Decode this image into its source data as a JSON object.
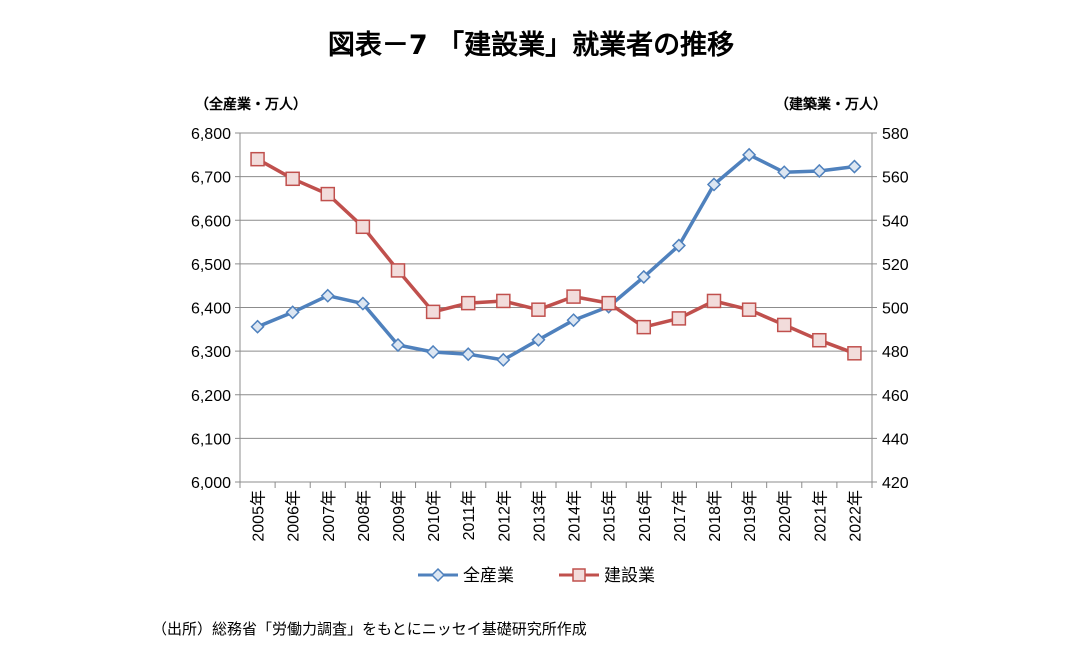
{
  "chart_data": {
    "type": "line",
    "title": "図表－7 「建設業」就業者の推移",
    "left_axis_unit": "（全産業・万人）",
    "right_axis_unit": "（建築業・万人）",
    "categories": [
      "2005年",
      "2006年",
      "2007年",
      "2008年",
      "2009年",
      "2010年",
      "2011年",
      "2012年",
      "2013年",
      "2014年",
      "2015年",
      "2016年",
      "2017年",
      "2018年",
      "2019年",
      "2020年",
      "2021年",
      "2022年"
    ],
    "left_ylim": [
      6000,
      6800
    ],
    "left_yticks": [
      "6,000",
      "6,100",
      "6,200",
      "6,300",
      "6,400",
      "6,500",
      "6,600",
      "6,700",
      "6,800"
    ],
    "right_ylim": [
      420,
      580
    ],
    "right_yticks": [
      "420",
      "440",
      "460",
      "480",
      "500",
      "520",
      "540",
      "560",
      "580"
    ],
    "grid": true,
    "legend_position": "bottom",
    "series": [
      {
        "name": "全産業",
        "axis": "left",
        "color": "#4F81BD",
        "marker": "diamond",
        "values": [
          6356,
          6389,
          6427,
          6409,
          6314,
          6298,
          6293,
          6280,
          6326,
          6371,
          6402,
          6470,
          6542,
          6682,
          6750,
          6710,
          6713,
          6723
        ]
      },
      {
        "name": "建設業",
        "axis": "right",
        "color": "#C0504D",
        "marker": "square",
        "values": [
          568,
          559,
          552,
          537,
          517,
          498,
          502,
          503,
          499,
          505,
          502,
          491,
          495,
          503,
          499,
          492,
          485,
          479
        ]
      }
    ]
  },
  "source_note": "（出所）総務省「労働力調査」をもとにニッセイ基礎研究所作成"
}
